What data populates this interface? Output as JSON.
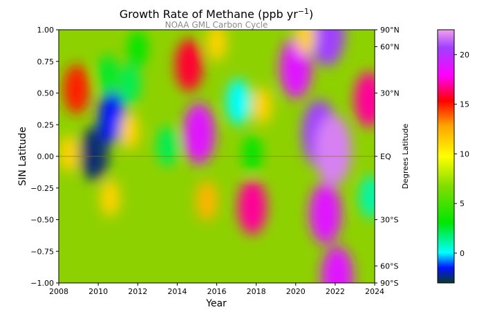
{
  "chart_data": {
    "type": "heatmap",
    "title": "Growth Rate of Methane (ppb yr",
    "title_superscript": "−1",
    "title_suffix": ")",
    "subtitle": "NOAA GML Carbon Cycle",
    "xlabel": "Year",
    "ylabel": "SIN Latitude",
    "y2label": "Degrees Latitude",
    "xlim": [
      2008,
      2024
    ],
    "ylim": [
      -1.0,
      1.0
    ],
    "x_ticks": [
      2008,
      2010,
      2012,
      2014,
      2016,
      2018,
      2020,
      2022,
      2024
    ],
    "x_tick_labels": [
      "2008",
      "2010",
      "2012",
      "2014",
      "2016",
      "2018",
      "2020",
      "2022",
      "2024"
    ],
    "y_ticks": [
      -1.0,
      -0.75,
      -0.5,
      -0.25,
      0.0,
      0.25,
      0.5,
      0.75,
      1.0
    ],
    "y_tick_labels": [
      "−1.00",
      "−0.75",
      "−0.50",
      "−0.25",
      "0.00",
      "0.25",
      "0.50",
      "0.75",
      "1.00"
    ],
    "y2_ticks": [
      {
        "sin": 1.0,
        "label": "90°N"
      },
      {
        "sin": 0.866,
        "label": "60°N"
      },
      {
        "sin": 0.5,
        "label": "30°N"
      },
      {
        "sin": 0.0,
        "label": "EQ"
      },
      {
        "sin": -0.5,
        "label": "30°S"
      },
      {
        "sin": -0.866,
        "label": "60°S"
      },
      {
        "sin": -1.0,
        "label": "90°S"
      }
    ],
    "colorbar": {
      "range": [
        -3,
        22.5
      ],
      "ticks": [
        0,
        5,
        10,
        15,
        20
      ],
      "tick_labels": [
        "0",
        "5",
        "10",
        "15",
        "20"
      ]
    },
    "field_features": [
      {
        "x": 2009.8,
        "y": 0.02,
        "value": -2.5
      },
      {
        "x": 2010.7,
        "y": 0.31,
        "value": -1.5
      },
      {
        "x": 2017.1,
        "y": 0.43,
        "value": 0
      },
      {
        "x": 2011.6,
        "y": 0.57,
        "value": 2
      },
      {
        "x": 2013.5,
        "y": 0.08,
        "value": 2
      },
      {
        "x": 2017.8,
        "y": 0.02,
        "value": 3
      },
      {
        "x": 2010.5,
        "y": 0.65,
        "value": 2.5
      },
      {
        "x": 2023.8,
        "y": -0.32,
        "value": 1
      },
      {
        "x": 2015.1,
        "y": 0.18,
        "value": 19
      },
      {
        "x": 2014.6,
        "y": 0.72,
        "value": 16
      },
      {
        "x": 2021.2,
        "y": 0.18,
        "value": 21
      },
      {
        "x": 2021.9,
        "y": 0.05,
        "value": 22
      },
      {
        "x": 2021.5,
        "y": -0.45,
        "value": 19
      },
      {
        "x": 2020.0,
        "y": 0.7,
        "value": 19
      },
      {
        "x": 2022.1,
        "y": -0.95,
        "value": 19
      },
      {
        "x": 2021.6,
        "y": 0.98,
        "value": 21
      },
      {
        "x": 2023.7,
        "y": 0.45,
        "value": 17
      },
      {
        "x": 2017.8,
        "y": -0.4,
        "value": 17
      },
      {
        "x": 2008.9,
        "y": 0.53,
        "value": 15
      },
      {
        "x": 2015.5,
        "y": -0.35,
        "value": 12
      },
      {
        "x": 2018.3,
        "y": 0.4,
        "value": 11
      },
      {
        "x": 2011.6,
        "y": 0.2,
        "value": 11
      },
      {
        "x": 2010.6,
        "y": -0.33,
        "value": 11
      },
      {
        "x": 2008.5,
        "y": 0.02,
        "value": 11
      },
      {
        "x": 2016.0,
        "y": 0.9,
        "value": 11
      },
      {
        "x": 2020.5,
        "y": 0.95,
        "value": 11
      },
      {
        "x": 2012.0,
        "y": 0.85,
        "value": 3
      }
    ],
    "zero_line": 0.0
  }
}
